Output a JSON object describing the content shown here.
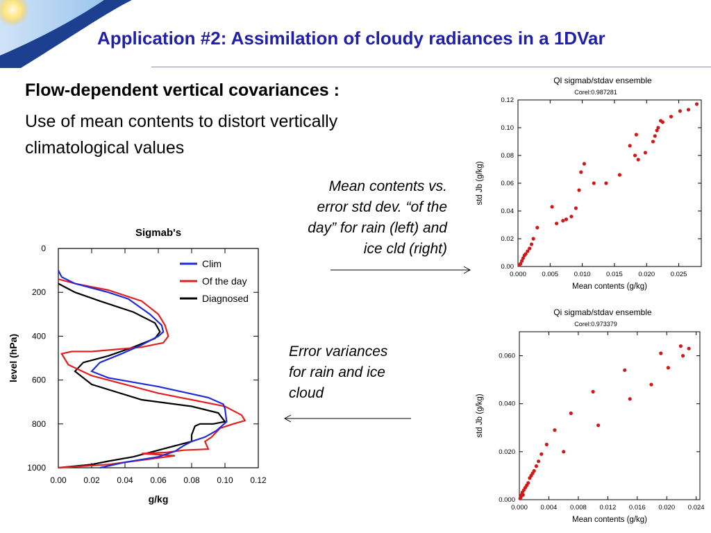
{
  "slide": {
    "title": "Application #2: Assimilation of cloudy radiances in a 1DVar",
    "subheading": "Flow-dependent vertical covariances :",
    "body_line1": "Use of mean contents to distort vertically",
    "body_line2": "climatological values",
    "note_top": [
      "Mean contents vs.",
      "error std dev. “of the",
      "day” for rain (left) and",
      "ice cld (right)"
    ],
    "note_bottom": [
      "Error variances",
      "for rain and ice",
      "cloud"
    ]
  },
  "colors": {
    "title": "#1f1fa8",
    "clim": "#1f2bd6",
    "ofday": "#e02020",
    "diagnosed": "#000000",
    "scatter": "#d01818"
  },
  "chart_data": [
    {
      "id": "sigmabs",
      "type": "line",
      "title": "Sigmab's",
      "xlabel": "g/kg",
      "ylabel": "level (hPa)",
      "xlim": [
        0,
        0.12
      ],
      "ylim": [
        1000,
        0
      ],
      "xticks": [
        "0.00",
        "0.02",
        "0.04",
        "0.06",
        "0.08",
        "0.10",
        "0.12"
      ],
      "yticks": [
        "0",
        "200",
        "400",
        "600",
        "800",
        "1000"
      ],
      "legend": "top-right",
      "series": [
        {
          "name": "Clim",
          "color": "#1f2bd6",
          "points": [
            [
              0.0,
              100
            ],
            [
              0.002,
              130
            ],
            [
              0.01,
              160
            ],
            [
              0.02,
              180
            ],
            [
              0.03,
              200
            ],
            [
              0.042,
              230
            ],
            [
              0.055,
              300
            ],
            [
              0.062,
              350
            ],
            [
              0.063,
              380
            ],
            [
              0.06,
              400
            ],
            [
              0.05,
              440
            ],
            [
              0.038,
              480
            ],
            [
              0.025,
              520
            ],
            [
              0.02,
              560
            ],
            [
              0.03,
              590
            ],
            [
              0.06,
              630
            ],
            [
              0.09,
              680
            ],
            [
              0.099,
              710
            ],
            [
              0.1,
              730
            ],
            [
              0.101,
              790
            ],
            [
              0.095,
              830
            ],
            [
              0.088,
              860
            ],
            [
              0.08,
              880
            ],
            [
              0.075,
              900
            ],
            [
              0.07,
              925
            ],
            [
              0.06,
              950
            ],
            [
              0.04,
              975
            ],
            [
              0.025,
              1000
            ]
          ]
        },
        {
          "name": "Of the day",
          "color": "#e02020",
          "points": [
            [
              0.0,
              140
            ],
            [
              0.01,
              160
            ],
            [
              0.03,
              190
            ],
            [
              0.05,
              240
            ],
            [
              0.06,
              300
            ],
            [
              0.064,
              350
            ],
            [
              0.066,
              400
            ],
            [
              0.063,
              430
            ],
            [
              0.05,
              450
            ],
            [
              0.035,
              460
            ],
            [
              0.02,
              470
            ],
            [
              0.008,
              470
            ],
            [
              0.002,
              480
            ],
            [
              0.006,
              530
            ],
            [
              0.02,
              580
            ],
            [
              0.04,
              620
            ],
            [
              0.06,
              660
            ],
            [
              0.08,
              690
            ],
            [
              0.1,
              720
            ],
            [
              0.11,
              760
            ],
            [
              0.112,
              785
            ],
            [
              0.105,
              800
            ],
            [
              0.097,
              820
            ],
            [
              0.092,
              860
            ],
            [
              0.088,
              880
            ],
            [
              0.09,
              915
            ],
            [
              0.075,
              920
            ],
            [
              0.065,
              930
            ],
            [
              0.05,
              935
            ],
            [
              0.07,
              945
            ],
            [
              0.055,
              960
            ],
            [
              0.04,
              975
            ],
            [
              0.03,
              985
            ],
            [
              0.0,
              1000
            ]
          ]
        },
        {
          "name": "Diagnosed",
          "color": "#000000",
          "points": [
            [
              0.0,
              160
            ],
            [
              0.01,
              200
            ],
            [
              0.025,
              240
            ],
            [
              0.045,
              290
            ],
            [
              0.058,
              340
            ],
            [
              0.061,
              380
            ],
            [
              0.058,
              410
            ],
            [
              0.045,
              450
            ],
            [
              0.03,
              490
            ],
            [
              0.015,
              520
            ],
            [
              0.01,
              560
            ],
            [
              0.02,
              620
            ],
            [
              0.05,
              690
            ],
            [
              0.08,
              720
            ],
            [
              0.096,
              750
            ],
            [
              0.1,
              790
            ],
            [
              0.093,
              800
            ],
            [
              0.085,
              800
            ],
            [
              0.082,
              810
            ],
            [
              0.08,
              850
            ],
            [
              0.08,
              880
            ],
            [
              0.075,
              890
            ],
            [
              0.06,
              920
            ],
            [
              0.045,
              950
            ],
            [
              0.03,
              970
            ],
            [
              0.02,
              985
            ],
            [
              0.0,
              1000
            ]
          ]
        }
      ]
    },
    {
      "id": "ql",
      "type": "scatter",
      "title": "Ql sigmab/stdav ensemble",
      "subtitle": "Corel:0.987281",
      "xlabel": "Mean contents (g/kg)",
      "ylabel": "std Jb (g/kg)",
      "xlim": [
        0,
        0.0285
      ],
      "ylim": [
        0,
        0.12
      ],
      "xticks": [
        "0.000",
        "0.005",
        "0.010",
        "0.015",
        "0.020",
        "0.025"
      ],
      "yticks": [
        "0.00",
        "0.02",
        "0.04",
        "0.06",
        "0.08",
        "0.10",
        "0.12"
      ],
      "points": [
        [
          0.0002,
          0.001
        ],
        [
          0.0004,
          0.002
        ],
        [
          0.0006,
          0.004
        ],
        [
          0.0008,
          0.006
        ],
        [
          0.001,
          0.008
        ],
        [
          0.0012,
          0.009
        ],
        [
          0.0015,
          0.011
        ],
        [
          0.0018,
          0.013
        ],
        [
          0.0021,
          0.016
        ],
        [
          0.0024,
          0.02
        ],
        [
          0.003,
          0.028
        ],
        [
          0.0053,
          0.043
        ],
        [
          0.006,
          0.031
        ],
        [
          0.007,
          0.033
        ],
        [
          0.0075,
          0.034
        ],
        [
          0.0083,
          0.036
        ],
        [
          0.009,
          0.042
        ],
        [
          0.0095,
          0.055
        ],
        [
          0.0098,
          0.068
        ],
        [
          0.0103,
          0.074
        ],
        [
          0.0118,
          0.06
        ],
        [
          0.0137,
          0.06
        ],
        [
          0.0158,
          0.066
        ],
        [
          0.0174,
          0.087
        ],
        [
          0.0182,
          0.08
        ],
        [
          0.0184,
          0.095
        ],
        [
          0.0187,
          0.077
        ],
        [
          0.0198,
          0.082
        ],
        [
          0.021,
          0.09
        ],
        [
          0.0213,
          0.094
        ],
        [
          0.0216,
          0.098
        ],
        [
          0.0218,
          0.1
        ],
        [
          0.0222,
          0.105
        ],
        [
          0.0225,
          0.104
        ],
        [
          0.0238,
          0.108
        ],
        [
          0.0252,
          0.112
        ],
        [
          0.0265,
          0.113
        ],
        [
          0.0278,
          0.117
        ]
      ]
    },
    {
      "id": "qi",
      "type": "scatter",
      "title": "Qi sigmab/stdav ensemble",
      "subtitle": "Corel:0.973379",
      "xlabel": "Mean contents (g/kg)",
      "ylabel": "std Jb (g/kg)",
      "xlim": [
        0,
        0.0245
      ],
      "ylim": [
        0,
        0.07
      ],
      "xticks": [
        "0.000",
        "0.004",
        "0.008",
        "0.012",
        "0.016",
        "0.020",
        "0.024"
      ],
      "yticks": [
        "0.000",
        "0.020",
        "0.040",
        "0.060"
      ],
      "points": [
        [
          0.0001,
          0.0005
        ],
        [
          0.0002,
          0.001
        ],
        [
          0.0003,
          0.002
        ],
        [
          0.0004,
          0.003
        ],
        [
          0.0005,
          0.002
        ],
        [
          0.0006,
          0.004
        ],
        [
          0.0008,
          0.005
        ],
        [
          0.001,
          0.006
        ],
        [
          0.0012,
          0.007
        ],
        [
          0.0014,
          0.009
        ],
        [
          0.0016,
          0.01
        ],
        [
          0.0018,
          0.011
        ],
        [
          0.002,
          0.012
        ],
        [
          0.0023,
          0.014
        ],
        [
          0.0026,
          0.016
        ],
        [
          0.003,
          0.019
        ],
        [
          0.0037,
          0.023
        ],
        [
          0.0048,
          0.029
        ],
        [
          0.006,
          0.02
        ],
        [
          0.007,
          0.036
        ],
        [
          0.01,
          0.045
        ],
        [
          0.0107,
          0.031
        ],
        [
          0.0143,
          0.054
        ],
        [
          0.015,
          0.042
        ],
        [
          0.0179,
          0.048
        ],
        [
          0.0192,
          0.061
        ],
        [
          0.0202,
          0.055
        ],
        [
          0.0219,
          0.064
        ],
        [
          0.0222,
          0.06
        ],
        [
          0.023,
          0.063
        ]
      ]
    }
  ]
}
